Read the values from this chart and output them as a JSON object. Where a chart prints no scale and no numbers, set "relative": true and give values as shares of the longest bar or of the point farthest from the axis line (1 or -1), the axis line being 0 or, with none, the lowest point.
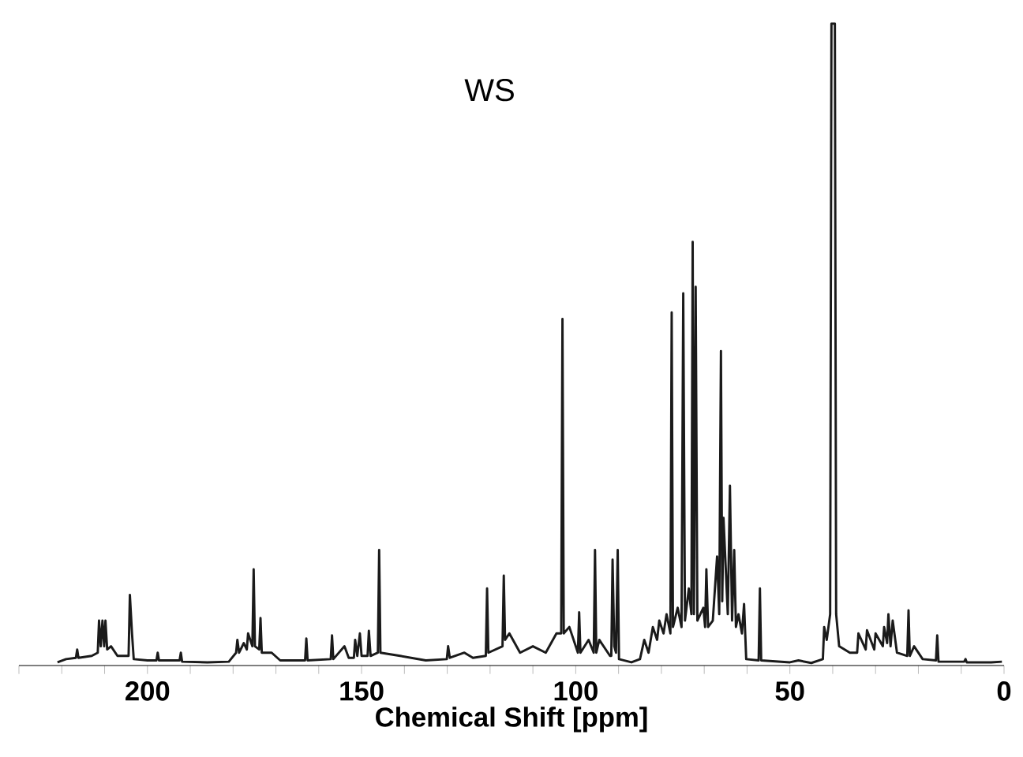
{
  "chart_data": {
    "type": "line",
    "title": "WS",
    "xlabel": "Chemical Shift [ppm]",
    "relative": true,
    "xlim": [
      230,
      0
    ],
    "xticks": [
      {
        "value": 230,
        "label": null
      },
      {
        "value": 220,
        "label": null
      },
      {
        "value": 210,
        "label": null
      },
      200,
      {
        "value": 190,
        "label": null
      },
      {
        "value": 180,
        "label": null
      },
      {
        "value": 170,
        "label": null
      },
      {
        "value": 160,
        "label": null
      },
      150,
      {
        "value": 140,
        "label": null
      },
      {
        "value": 130,
        "label": null
      },
      {
        "value": 120,
        "label": null
      },
      {
        "value": 110,
        "label": null
      },
      100,
      {
        "value": 90,
        "label": null
      },
      {
        "value": 80,
        "label": null
      },
      {
        "value": 70,
        "label": null
      },
      {
        "value": 60,
        "label": null
      },
      50,
      {
        "value": 40,
        "label": null
      },
      {
        "value": 30,
        "label": null
      },
      {
        "value": 20,
        "label": null
      },
      {
        "value": 10,
        "label": null
      },
      0
    ],
    "grid": false,
    "marker": "none",
    "line_style": "solid",
    "series": [
      {
        "color": "#1a1a1a",
        "x": [
          221,
          219,
          216.7,
          216.4,
          216.1,
          213,
          211.6,
          211.3,
          210.9,
          210.5,
          210.1,
          209.8,
          209.4,
          208.5,
          207,
          204.4,
          204.1,
          203.6,
          203.2,
          200,
          197.9,
          197.6,
          197.3,
          192.5,
          192.2,
          191.9,
          186,
          181,
          179.3,
          179,
          178.6,
          177.5,
          176.8,
          176.5,
          175.5,
          175.2,
          174.9,
          173.9,
          173.6,
          173.3,
          171,
          169,
          163.2,
          162.9,
          162.6,
          157.2,
          156.9,
          156.6,
          154,
          153,
          151.8,
          151.5,
          151,
          150.4,
          150,
          148.6,
          148.3,
          147.9,
          146.2,
          145.9,
          145.6,
          141,
          135,
          130.1,
          129.8,
          129.4,
          126,
          124,
          121,
          120.7,
          120.4,
          117.1,
          116.8,
          116.5,
          115.5,
          113,
          110,
          107,
          104.5,
          103.4,
          103.1,
          102.8,
          101.5,
          100,
          99.5,
          99.2,
          98.9,
          97,
          95.8,
          95.5,
          95.2,
          94.5,
          92,
          91.7,
          91.4,
          91.0,
          90.6,
          90.2,
          89.9,
          87,
          85,
          84,
          83,
          82,
          81,
          80.5,
          79.5,
          78.8,
          77.9,
          77.6,
          77.3,
          76.2,
          75.3,
          74.9,
          74.5,
          73.6,
          73.0,
          72.7,
          72.4,
          72.0,
          71.6,
          70.2,
          69.8,
          69.5,
          69.1,
          68,
          67.0,
          66.5,
          66.1,
          65.8,
          65.5,
          64.5,
          64.0,
          63.5,
          63.0,
          62.6,
          62,
          61.2,
          60.7,
          60.2,
          57.3,
          57.0,
          56.7,
          50,
          48,
          45,
          42.3,
          42,
          41.4,
          40.6,
          40.3,
          39.5,
          39.2,
          38.5,
          36,
          34.3,
          34,
          32.3,
          32,
          30.3,
          30,
          28.3,
          28,
          27.3,
          27,
          26.5,
          26,
          25,
          22.6,
          22.3,
          22,
          21,
          19,
          15.9,
          15.6,
          15.3,
          9.3,
          9,
          8.7,
          3,
          0.5
        ],
        "values": [
          0.005,
          0.01,
          0.012,
          0.025,
          0.012,
          0.015,
          0.02,
          0.07,
          0.03,
          0.07,
          0.03,
          0.07,
          0.025,
          0.03,
          0.015,
          0.015,
          0.11,
          0.05,
          0.01,
          0.008,
          0.008,
          0.02,
          0.008,
          0.008,
          0.02,
          0.006,
          0.005,
          0.006,
          0.02,
          0.04,
          0.02,
          0.035,
          0.025,
          0.05,
          0.03,
          0.15,
          0.03,
          0.025,
          0.074,
          0.02,
          0.02,
          0.008,
          0.008,
          0.042,
          0.008,
          0.01,
          0.047,
          0.01,
          0.03,
          0.012,
          0.012,
          0.04,
          0.015,
          0.05,
          0.015,
          0.015,
          0.054,
          0.015,
          0.02,
          0.18,
          0.02,
          0.015,
          0.008,
          0.01,
          0.03,
          0.012,
          0.02,
          0.012,
          0.015,
          0.12,
          0.02,
          0.03,
          0.14,
          0.04,
          0.05,
          0.02,
          0.03,
          0.02,
          0.05,
          0.05,
          0.54,
          0.05,
          0.06,
          0.03,
          0.02,
          0.083,
          0.02,
          0.04,
          0.02,
          0.18,
          0.02,
          0.04,
          0.015,
          0.015,
          0.165,
          0.03,
          0.02,
          0.18,
          0.01,
          0.005,
          0.01,
          0.04,
          0.02,
          0.06,
          0.04,
          0.07,
          0.05,
          0.08,
          0.05,
          0.55,
          0.06,
          0.09,
          0.06,
          0.58,
          0.07,
          0.12,
          0.08,
          0.66,
          0.08,
          0.59,
          0.07,
          0.09,
          0.06,
          0.15,
          0.06,
          0.07,
          0.17,
          0.08,
          0.49,
          0.1,
          0.23,
          0.08,
          0.28,
          0.07,
          0.18,
          0.06,
          0.08,
          0.05,
          0.096,
          0.01,
          0.008,
          0.12,
          0.008,
          0.005,
          0.008,
          0.004,
          0.01,
          0.06,
          0.04,
          0.08,
          1,
          1,
          0.08,
          0.03,
          0.02,
          0.02,
          0.05,
          0.025,
          0.055,
          0.025,
          0.05,
          0.03,
          0.06,
          0.035,
          0.08,
          0.03,
          0.07,
          0.02,
          0.015,
          0.086,
          0.015,
          0.03,
          0.01,
          0.008,
          0.047,
          0.006,
          0.006,
          0.01,
          0.005,
          0.005,
          0.006
        ]
      }
    ]
  }
}
